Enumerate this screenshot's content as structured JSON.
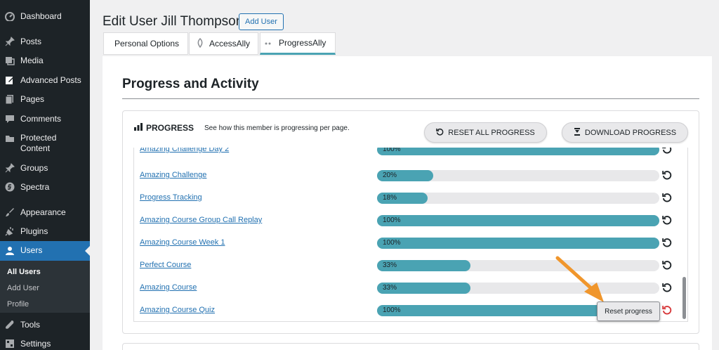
{
  "sidebar": {
    "items": [
      {
        "label": "Dashboard",
        "icon": "dashboard-icon"
      },
      {
        "label": "Posts",
        "icon": "pin-icon"
      },
      {
        "label": "Media",
        "icon": "media-icon"
      },
      {
        "label": "Advanced Posts",
        "icon": "edit-icon"
      },
      {
        "label": "Pages",
        "icon": "page-icon"
      },
      {
        "label": "Comments",
        "icon": "comment-icon"
      },
      {
        "label": "Protected Content",
        "icon": "folder-icon"
      },
      {
        "label": "Groups",
        "icon": "pin-icon"
      },
      {
        "label": "Spectra",
        "icon": "spectra-icon"
      },
      {
        "label": "Appearance",
        "icon": "brush-icon"
      },
      {
        "label": "Plugins",
        "icon": "plugin-icon"
      },
      {
        "label": "Users",
        "icon": "user-icon"
      },
      {
        "label": "Tools",
        "icon": "wrench-icon"
      },
      {
        "label": "Settings",
        "icon": "settings-icon"
      }
    ],
    "submenu": [
      {
        "label": "All Users"
      },
      {
        "label": "Add User"
      },
      {
        "label": "Profile"
      }
    ]
  },
  "header": {
    "title": "Edit User Jill Thompson",
    "add_user_label": "Add User"
  },
  "tabs": [
    {
      "label": "Personal Options"
    },
    {
      "label": "AccessAlly"
    },
    {
      "label": "ProgressAlly"
    }
  ],
  "section": {
    "title": "Progress and Activity"
  },
  "progress": {
    "heading": "PROGRESS",
    "description": "See how this member is progressing per page.",
    "reset_all_label": "RESET ALL PROGRESS",
    "download_label": "DOWNLOAD PROGRESS",
    "rows": [
      {
        "title": "Amazing Challenge Day 2",
        "percent": 100,
        "label": "100%"
      },
      {
        "title": "Amazing Challenge",
        "percent": 20,
        "label": "20%"
      },
      {
        "title": "Progress Tracking",
        "percent": 18,
        "label": "18%"
      },
      {
        "title": "Amazing Course Group Call Replay",
        "percent": 100,
        "label": "100%"
      },
      {
        "title": "Amazing Course Week 1",
        "percent": 100,
        "label": "100%"
      },
      {
        "title": "Perfect Course",
        "percent": 33,
        "label": "33%"
      },
      {
        "title": "Amazing Course",
        "percent": 33,
        "label": "33%"
      },
      {
        "title": "Amazing Course Quiz",
        "percent": 100,
        "label": "100%"
      }
    ],
    "tooltip": "Reset progress"
  },
  "colors": {
    "sidebar_bg": "#1d2327",
    "active_menu": "#2271b1",
    "bar_fill": "#4aa3b3",
    "link": "#2271b1",
    "arrow": "#f0962c",
    "reset_hover": "#d63638"
  }
}
